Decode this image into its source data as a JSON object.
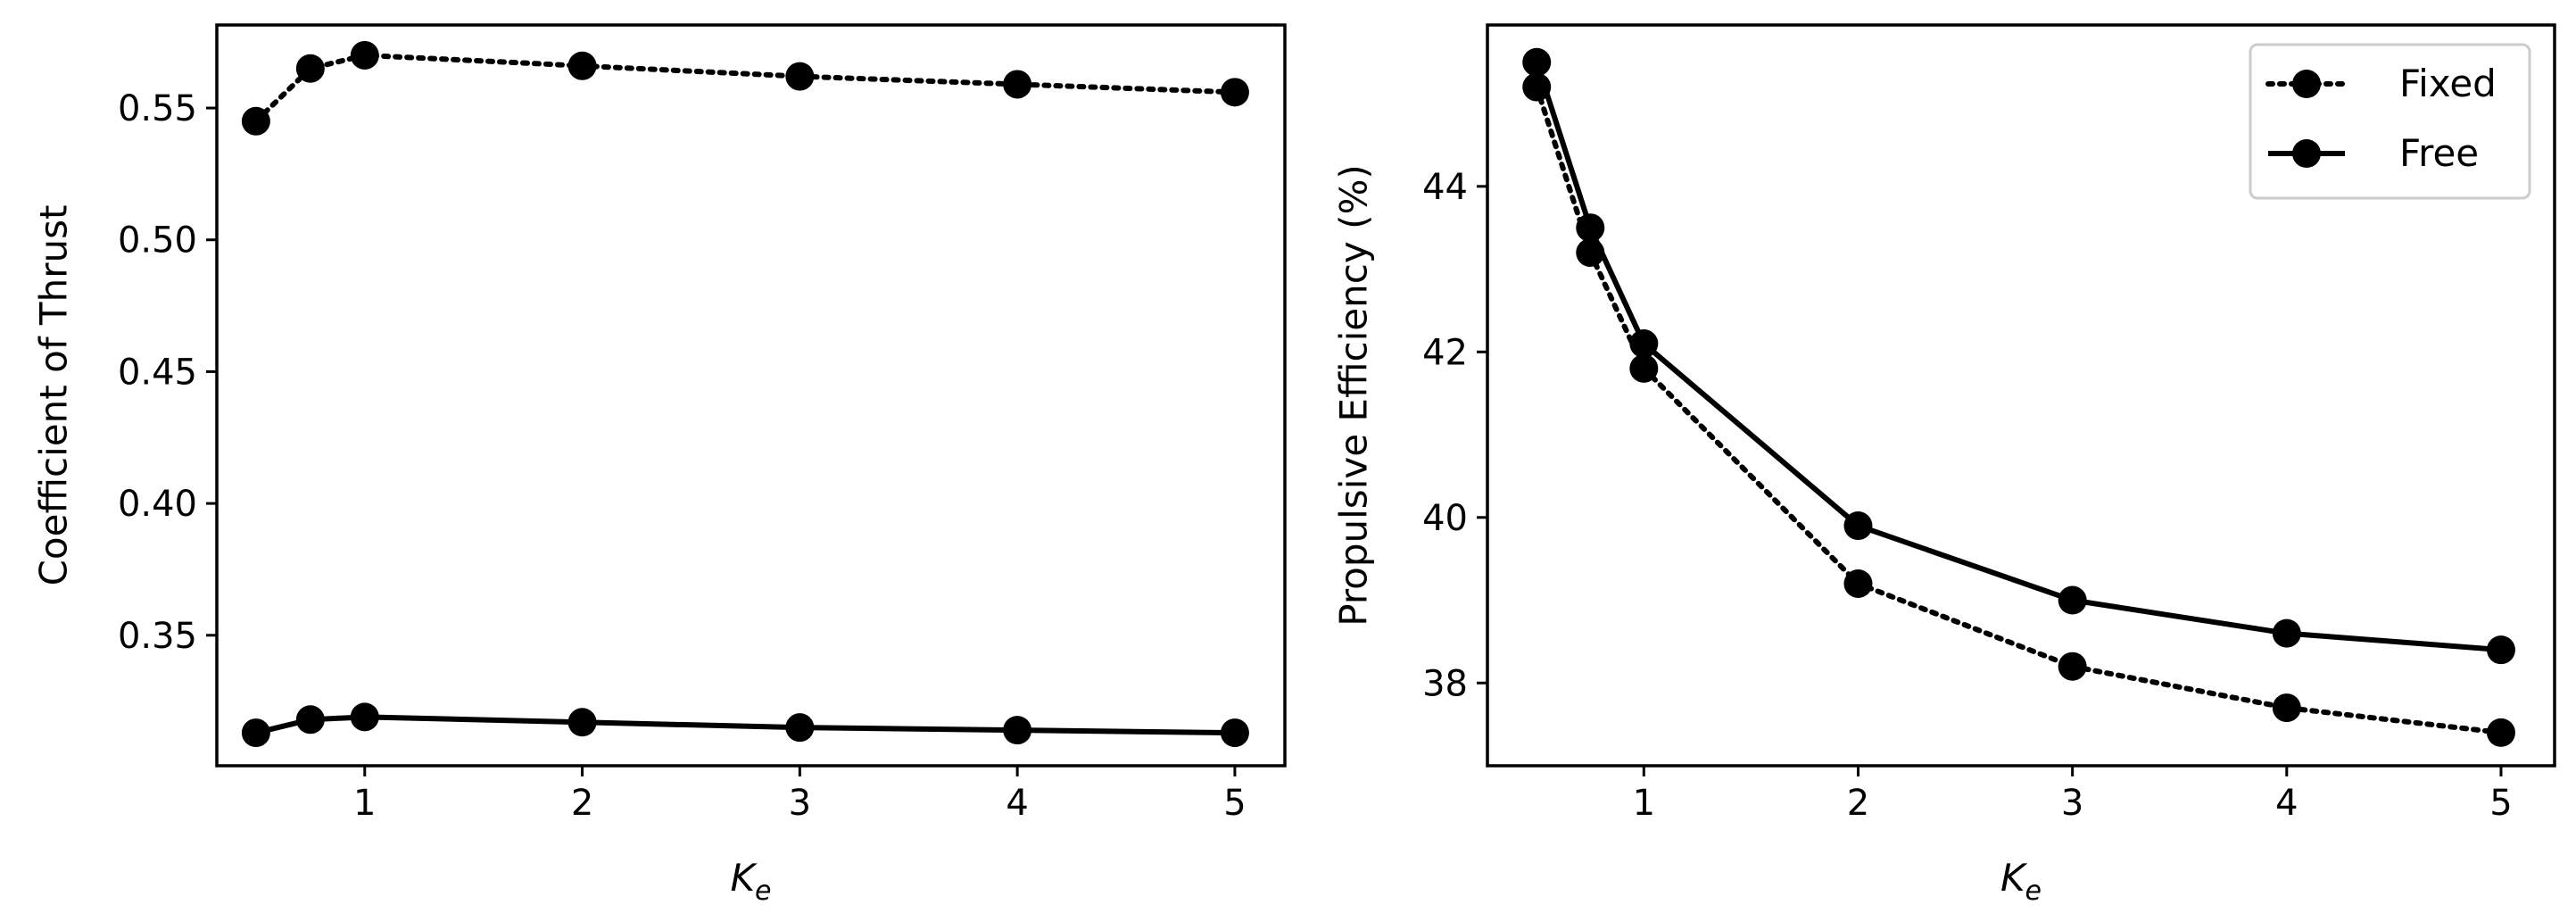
{
  "chart_data": [
    {
      "type": "line",
      "title": "",
      "xlabel_main": "K",
      "xlabel_sub": "e",
      "ylabel": "Coefficient of Thrust",
      "x": [
        0.5,
        0.75,
        1,
        2,
        3,
        4,
        5
      ],
      "xlim": [
        0.32,
        5.23
      ],
      "ylim": [
        0.3005,
        0.5815
      ],
      "xticks": [
        1,
        2,
        3,
        4,
        5
      ],
      "xtick_labels": [
        "1",
        "2",
        "3",
        "4",
        "5"
      ],
      "yticks": [
        0.35,
        0.4,
        0.45,
        0.5,
        0.55
      ],
      "ytick_labels": [
        "0.35",
        "0.40",
        "0.45",
        "0.50",
        "0.55"
      ],
      "grid": false,
      "series": [
        {
          "name": "Fixed",
          "style": "dotted",
          "values": [
            0.545,
            0.565,
            0.57,
            0.566,
            0.562,
            0.559,
            0.556
          ]
        },
        {
          "name": "Free",
          "style": "solid",
          "values": [
            0.313,
            0.318,
            0.319,
            0.317,
            0.315,
            0.314,
            0.313
          ]
        }
      ]
    },
    {
      "type": "line",
      "title": "",
      "xlabel_main": "K",
      "xlabel_sub": "e",
      "ylabel": "Propulsive Efficiency (%)",
      "x": [
        0.5,
        0.75,
        1,
        2,
        3,
        4,
        5
      ],
      "xlim": [
        0.27,
        5.25
      ],
      "ylim": [
        37.0,
        45.95
      ],
      "xticks": [
        1,
        2,
        3,
        4,
        5
      ],
      "xtick_labels": [
        "1",
        "2",
        "3",
        "4",
        "5"
      ],
      "yticks": [
        38,
        40,
        42,
        44
      ],
      "ytick_labels": [
        "38",
        "40",
        "42",
        "44"
      ],
      "grid": false,
      "legend_position": "top-right",
      "series": [
        {
          "name": "Fixed",
          "style": "dotted",
          "values": [
            45.2,
            43.2,
            41.8,
            39.2,
            38.2,
            37.7,
            37.4
          ]
        },
        {
          "name": "Free",
          "style": "solid",
          "values": [
            45.5,
            43.5,
            42.1,
            39.9,
            39.0,
            38.6,
            38.4
          ]
        }
      ]
    }
  ]
}
